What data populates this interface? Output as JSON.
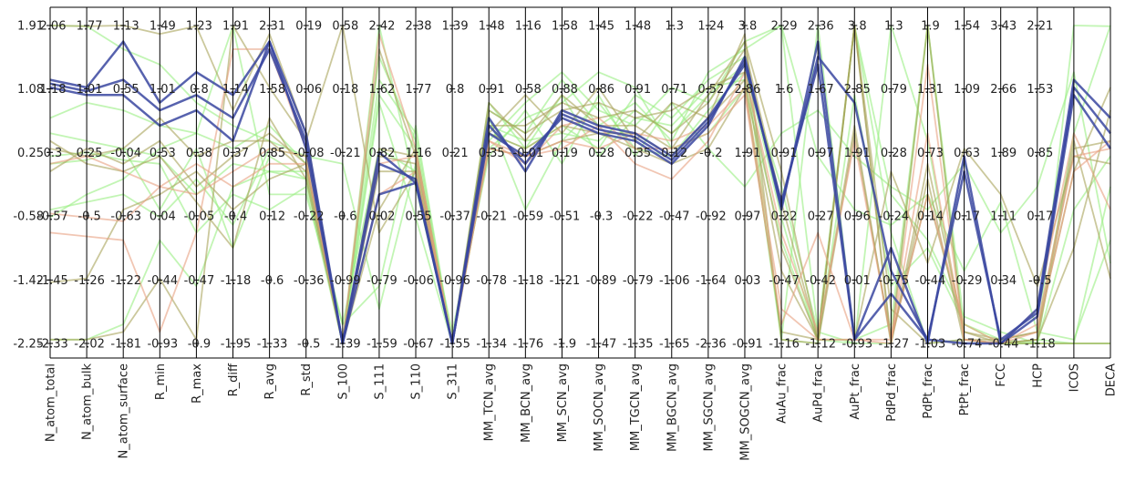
{
  "chart_data": {
    "type": "parallel_coordinates",
    "title": "",
    "axes": [
      "N_atom_total",
      "N_atom_bulk",
      "N_atom_surface",
      "R_min",
      "R_max",
      "R_diff",
      "R_avg",
      "R_std",
      "S_100",
      "S_111",
      "S_110",
      "S_311",
      "MM_TCN_avg",
      "MM_BCN_avg",
      "MM_SCN_avg",
      "MM_SOCN_avg",
      "MM_TGCN_avg",
      "MM_BGCN_avg",
      "MM_SGCN_avg",
      "MM_SOGCN_avg",
      "AuAu_frac",
      "AuPd_frac",
      "AuPt_frac",
      "PdPd_frac",
      "PdPt_frac",
      "PtPt_frac",
      "FCC",
      "HCP",
      "ICOS",
      "DECA"
    ],
    "shared_y_ticks": [
      "1.91",
      "1.08",
      "0.25",
      "-0.58",
      "-1.42",
      "-2.25"
    ],
    "y_range": [
      -2.25,
      1.91
    ],
    "axis_tick_labels": [
      [
        "2.06",
        "1.18",
        "0.3",
        "-0.57",
        "-1.45",
        "-2.33"
      ],
      [
        "1.77",
        "1.01",
        "0.25",
        "-0.5",
        "-1.26",
        "-2.02"
      ],
      [
        "1.13",
        "0.55",
        "-0.04",
        "-0.63",
        "-1.22",
        "-1.81"
      ],
      [
        "1.49",
        "1.01",
        "0.53",
        "0.04",
        "-0.44",
        "-0.93"
      ],
      [
        "1.23",
        "0.8",
        "0.38",
        "-0.05",
        "-0.47",
        "-0.9"
      ],
      [
        "1.91",
        "1.14",
        "0.37",
        "-0.4",
        "-1.18",
        "-1.95"
      ],
      [
        "2.31",
        "1.58",
        "0.85",
        "0.12",
        "-0.6",
        "-1.33"
      ],
      [
        "0.19",
        "0.06",
        "-0.08",
        "-0.22",
        "-0.36",
        "-0.5"
      ],
      [
        "0.58",
        "0.18",
        "-0.21",
        "-0.6",
        "-0.99",
        "-1.39"
      ],
      [
        "2.42",
        "1.62",
        "0.82",
        "0.02",
        "-0.79",
        "-1.59"
      ],
      [
        "2.38",
        "1.77",
        "1.16",
        "0.55",
        "-0.06",
        "-0.67"
      ],
      [
        "1.39",
        "0.8",
        "0.21",
        "-0.37",
        "-0.96",
        "-1.55"
      ],
      [
        "1.48",
        "0.91",
        "0.35",
        "-0.21",
        "-0.78",
        "-1.34"
      ],
      [
        "1.16",
        "0.58",
        "-0.01",
        "-0.59",
        "-1.18",
        "-1.76"
      ],
      [
        "1.58",
        "0.88",
        "0.19",
        "-0.51",
        "-1.21",
        "-1.9"
      ],
      [
        "1.45",
        "0.86",
        "0.28",
        "-0.3",
        "-0.89",
        "-1.47"
      ],
      [
        "1.48",
        "0.91",
        "0.35",
        "-0.22",
        "-0.79",
        "-1.35"
      ],
      [
        "1.3",
        "0.71",
        "0.12",
        "-0.47",
        "-1.06",
        "-1.65"
      ],
      [
        "1.24",
        "0.52",
        "-0.2",
        "-0.92",
        "-1.64",
        "-2.36"
      ],
      [
        "3.8",
        "2.86",
        "1.91",
        "0.97",
        "0.03",
        "-0.91"
      ],
      [
        "2.29",
        "1.6",
        "0.91",
        "0.22",
        "-0.47",
        "-1.16"
      ],
      [
        "2.36",
        "1.67",
        "0.97",
        "0.27",
        "-0.42",
        "-1.12"
      ],
      [
        "3.8",
        "2.85",
        "1.91",
        "0.96",
        "0.01",
        "-0.93"
      ],
      [
        "1.3",
        "0.79",
        "0.28",
        "-0.24",
        "-0.75",
        "-1.27"
      ],
      [
        "1.9",
        "1.31",
        "0.73",
        "0.14",
        "-0.44",
        "-1.03"
      ],
      [
        "1.54",
        "1.09",
        "0.63",
        "0.17",
        "-0.29",
        "-0.74"
      ],
      [
        "3.43",
        "2.66",
        "1.89",
        "1.11",
        "0.34",
        "-0.44"
      ],
      [
        "2.21",
        "1.53",
        "0.85",
        "0.17",
        "-0.5",
        "-1.18"
      ],
      [],
      []
    ],
    "series": [
      {
        "color": "#3a47a0",
        "values": [
          1.2,
          1.1,
          1.7,
          0.9,
          1.3,
          1.0,
          1.7,
          0.3,
          -2.25,
          0.25,
          -0.15,
          -2.25,
          0.7,
          0.0,
          0.8,
          0.6,
          0.5,
          0.2,
          0.7,
          1.4,
          -0.4,
          1.4,
          -2.2,
          -1.0,
          -2.25,
          0.2,
          -2.25,
          -1.8,
          1.2,
          0.7
        ]
      },
      {
        "color": "#3a47a0",
        "values": [
          1.1,
          1.0,
          1.0,
          0.6,
          0.8,
          0.4,
          1.7,
          0.5,
          -2.25,
          -0.3,
          -0.15,
          -2.25,
          0.5,
          0.2,
          0.7,
          0.5,
          0.4,
          0.1,
          0.6,
          1.5,
          -0.5,
          1.7,
          -2.2,
          -1.6,
          -2.2,
          -2.25,
          -2.25,
          -1.9,
          1.0,
          0.3
        ]
      },
      {
        "color": "#3a47a0",
        "values": [
          1.15,
          1.05,
          1.2,
          0.8,
          1.0,
          0.7,
          1.6,
          0.4,
          -2.25,
          0.1,
          -0.1,
          -2.25,
          0.6,
          0.1,
          0.75,
          0.55,
          0.45,
          0.15,
          0.65,
          1.45,
          -0.45,
          1.5,
          0.9,
          -1.3,
          -2.2,
          0.0,
          -2.2,
          -1.85,
          1.1,
          0.5
        ]
      },
      {
        "color": "#9aee82",
        "values": [
          0.5,
          0.4,
          0.3,
          0.2,
          -0.3,
          0.1,
          0.0,
          -0.1,
          -2.0,
          0.3,
          0.0,
          -2.25,
          0.6,
          0.4,
          0.5,
          0.4,
          0.8,
          0.5,
          1.0,
          1.4,
          -0.6,
          -2.25,
          1.9,
          -0.3,
          -0.9,
          -1.9,
          -2.1,
          -2.25,
          1.91,
          1.9
        ]
      },
      {
        "color": "#9aee82",
        "values": [
          0.7,
          0.9,
          0.8,
          0.6,
          0.5,
          0.3,
          0.6,
          0.1,
          -2.25,
          1.91,
          -0.2,
          -2.25,
          0.8,
          0.5,
          1.2,
          0.6,
          0.9,
          0.4,
          1.3,
          1.6,
          1.91,
          -2.1,
          -2.25,
          -2.25,
          1.91,
          -2.2,
          -2.25,
          -2.2,
          -2.25,
          -2.25
        ]
      },
      {
        "color": "#9aee82",
        "values": [
          -0.5,
          -0.4,
          -0.3,
          -0.6,
          -0.1,
          -0.7,
          0.3,
          0.2,
          0.1,
          -1.8,
          0.1,
          -2.1,
          0.2,
          0.8,
          0.1,
          1.0,
          0.2,
          0.9,
          0.3,
          -0.2,
          0.5,
          0.8,
          0.2,
          -0.2,
          -0.5,
          0.1,
          -0.8,
          -0.2,
          1.3,
          -1.2
        ]
      },
      {
        "color": "#9aee82",
        "values": [
          0.2,
          0.25,
          0.15,
          0.1,
          -0.8,
          -0.3,
          -0.5,
          -0.2,
          -2.25,
          1.5,
          0.4,
          -2.25,
          0.9,
          0.3,
          1.0,
          0.2,
          0.7,
          0.6,
          1.1,
          1.2,
          -2.2,
          -2.25,
          1.0,
          -1.5,
          -1.0,
          -2.0,
          -2.25,
          -2.25,
          -0.5,
          0.2
        ]
      },
      {
        "color": "#9aee82",
        "values": [
          -2.2,
          -2.2,
          -2.0,
          -0.9,
          -1.5,
          -0.2,
          0.0,
          0.0,
          -2.25,
          1.0,
          0.3,
          -2.25,
          0.4,
          0.9,
          1.3,
          0.8,
          0.6,
          1.1,
          0.9,
          1.7,
          1.91,
          0.2,
          -0.5,
          -0.7,
          -0.3,
          -1.3,
          -0.4,
          -2.1,
          -2.2,
          -0.9
        ]
      },
      {
        "color": "#9aee82",
        "values": [
          -0.6,
          -0.3,
          -0.1,
          0.3,
          0.5,
          1.9,
          -0.3,
          -0.3,
          -2.0,
          -1.5,
          0.6,
          -2.25,
          0.7,
          -0.5,
          0.4,
          0.9,
          0.3,
          0.2,
          0.8,
          1.3,
          -0.2,
          -2.1,
          1.91,
          -0.8,
          -2.25,
          -2.2,
          -2.25,
          -2.25,
          0.5,
          1.91
        ]
      },
      {
        "color": "#9aee82",
        "values": [
          1.91,
          1.9,
          1.6,
          1.4,
          0.9,
          0.6,
          0.4,
          0.2,
          -2.25,
          0.9,
          -0.6,
          -2.25,
          0.3,
          0.7,
          0.9,
          1.3,
          1.1,
          0.3,
          0.5,
          1.1,
          -0.9,
          -2.2,
          -2.25,
          1.91,
          0.4,
          -2.2,
          -2.25,
          -2.25,
          -2.25,
          -0.2
        ]
      },
      {
        "color": "#9aee82",
        "values": [
          0.1,
          0.15,
          0.3,
          -0.5,
          0.3,
          -1.0,
          0.2,
          -0.1,
          -2.25,
          1.2,
          0.5,
          -2.25,
          0.5,
          0.3,
          0.6,
          0.3,
          1.0,
          0.7,
          1.2,
          1.5,
          -2.2,
          1.91,
          -2.2,
          -2.0,
          1.91,
          -2.0,
          -2.2,
          -2.25,
          -2.25,
          -2.25
        ]
      },
      {
        "color": "#a9a35a",
        "values": [
          0.3,
          0.2,
          0.3,
          0.7,
          0.2,
          0.4,
          0.4,
          0.0,
          -2.25,
          0.0,
          0.0,
          -2.25,
          0.6,
          0.6,
          0.9,
          0.7,
          0.8,
          0.5,
          0.9,
          1.6,
          -0.4,
          -2.2,
          1.91,
          -2.25,
          0.1,
          -2.1,
          -2.25,
          -2.2,
          0.3,
          0.4
        ]
      },
      {
        "color": "#a9a35a",
        "values": [
          1.91,
          1.9,
          1.91,
          1.8,
          1.9,
          0.8,
          1.8,
          0.5,
          -2.25,
          0.3,
          0.2,
          -2.25,
          0.9,
          0.4,
          1.0,
          0.6,
          0.6,
          0.3,
          1.0,
          1.7,
          0.0,
          -2.2,
          -2.2,
          0.0,
          -1.2,
          0.3,
          -0.3,
          -1.5,
          0.2,
          0.1
        ]
      },
      {
        "color": "#a9a35a",
        "values": [
          0.4,
          0.1,
          0.0,
          0.2,
          -0.4,
          -1.0,
          0.7,
          -0.1,
          -2.25,
          -0.5,
          0.3,
          -2.25,
          0.3,
          0.2,
          0.4,
          0.5,
          0.3,
          0.1,
          0.3,
          1.1,
          -2.1,
          -2.2,
          1.91,
          -1.8,
          -2.25,
          -2.2,
          -2.2,
          -2.1,
          0.4,
          -1.4
        ]
      },
      {
        "color": "#a9a35a",
        "values": [
          -2.2,
          -2.2,
          -2.1,
          -1.4,
          -2.2,
          1.91,
          1.1,
          0.4,
          1.91,
          -0.8,
          0.0,
          -2.25,
          0.5,
          1.0,
          0.5,
          1.1,
          0.4,
          0.9,
          0.7,
          1.8,
          -2.2,
          -2.25,
          0.5,
          -2.2,
          1.91,
          -2.2,
          -2.25,
          -2.25,
          -2.25,
          -2.25
        ]
      },
      {
        "color": "#a9a35a",
        "values": [
          -1.45,
          -1.4,
          -0.5,
          -0.3,
          0.0,
          -0.5,
          -0.1,
          0.1,
          -2.25,
          1.6,
          0.2,
          -2.25,
          0.8,
          0.5,
          0.8,
          0.9,
          0.7,
          0.8,
          1.1,
          1.3,
          -1.0,
          -2.2,
          0.6,
          -2.25,
          -0.1,
          -2.25,
          -2.25,
          -2.2,
          -1.0,
          0.8
        ]
      },
      {
        "color": "#a9a35a",
        "values": [
          0.0,
          0.3,
          0.1,
          0.4,
          -0.2,
          0.2,
          0.5,
          0.1,
          -2.25,
          0.2,
          0.1,
          -2.25,
          0.5,
          0.3,
          0.6,
          0.5,
          0.5,
          0.2,
          0.7,
          1.2,
          -1.3,
          -2.2,
          1.91,
          -2.2,
          -0.3,
          -2.1,
          -2.2,
          -2.1,
          0.0,
          1.1
        ]
      },
      {
        "color": "#e8a080",
        "values": [
          -0.8,
          -0.85,
          -0.9,
          -2.1,
          -0.8,
          1.6,
          1.6,
          0.3,
          -2.25,
          1.8,
          0.3,
          -2.25,
          0.4,
          0.2,
          0.3,
          0.6,
          0.1,
          -0.1,
          0.4,
          1.3,
          -0.8,
          -2.1,
          0.4,
          -2.2,
          -0.3,
          -2.0,
          -2.25,
          -1.8,
          0.5,
          -0.5
        ]
      },
      {
        "color": "#e8a080",
        "values": [
          -0.55,
          -0.6,
          -0.65,
          -0.2,
          0.1,
          -0.2,
          0.1,
          0.1,
          -2.25,
          -0.3,
          0.0,
          -2.25,
          0.4,
          0.1,
          0.6,
          0.7,
          0.3,
          0.3,
          0.5,
          1.0,
          -2.0,
          -0.8,
          -2.2,
          -2.25,
          1.4,
          -2.2,
          -2.25,
          -2.0,
          0.2,
          0.3
        ]
      },
      {
        "color": "#e8a080",
        "values": [
          0.1,
          0.2,
          0.0,
          -0.2,
          -0.3,
          0.0,
          0.3,
          0.2,
          -2.25,
          0.1,
          0.2,
          -2.25,
          0.3,
          0.2,
          0.4,
          0.3,
          0.5,
          0.4,
          0.6,
          1.1,
          -1.8,
          -2.2,
          -2.2,
          -2.2,
          0.5,
          -2.2,
          -2.25,
          -2.1,
          0.0,
          0.4
        ]
      }
    ]
  }
}
